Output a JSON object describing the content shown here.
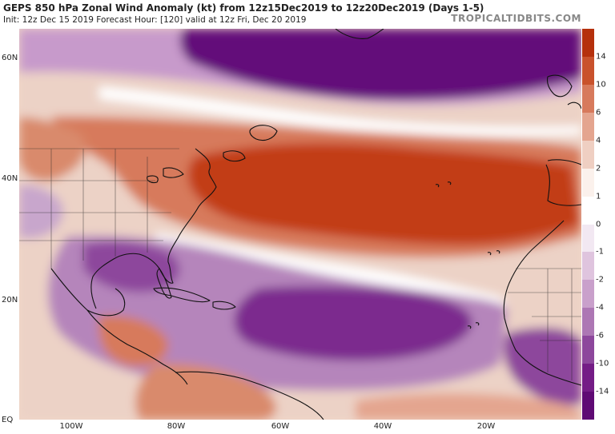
{
  "header": {
    "title": "GEPS 850 hPa Zonal Wind Anomaly (kt) from 12z15Dec2019 to 12z20Dec2019 (Days 1-5)",
    "subtitle": "Init: 12z Dec 15 2019   Forecast Hour: [120]   valid at 12z Fri, Dec 20 2019",
    "brand": "TROPICALTIDBITS.COM"
  },
  "map": {
    "lat_labels": [
      "60N",
      "40N",
      "20N",
      "EQ"
    ],
    "lon_labels": [
      "100W",
      "80W",
      "60W",
      "40W",
      "20W"
    ]
  },
  "colorbar": {
    "labels": [
      "14",
      "10",
      "6",
      "4",
      "2",
      "1",
      "0",
      "-1",
      "-2",
      "-4",
      "-6",
      "-10",
      "-14"
    ],
    "colors": [
      "#b5300c",
      "#c9522c",
      "#d77a5c",
      "#e4a58f",
      "#efcfc2",
      "#fbf1ec",
      "#ffffff",
      "#f2e8f2",
      "#dfc4de",
      "#c9a0cb",
      "#ad77b4",
      "#8d479c",
      "#741c86",
      "#5f0a74"
    ]
  },
  "palette": {
    "pos_strong": "#c23d12",
    "pos_mid": "#d77a5c",
    "pos_light": "#efcfc2",
    "neg_light": "#e4cfe6",
    "neg_mid": "#b585bb",
    "neg_strong": "#7c2a8e",
    "neg_deep": "#63107a",
    "land_line": "#111111"
  }
}
